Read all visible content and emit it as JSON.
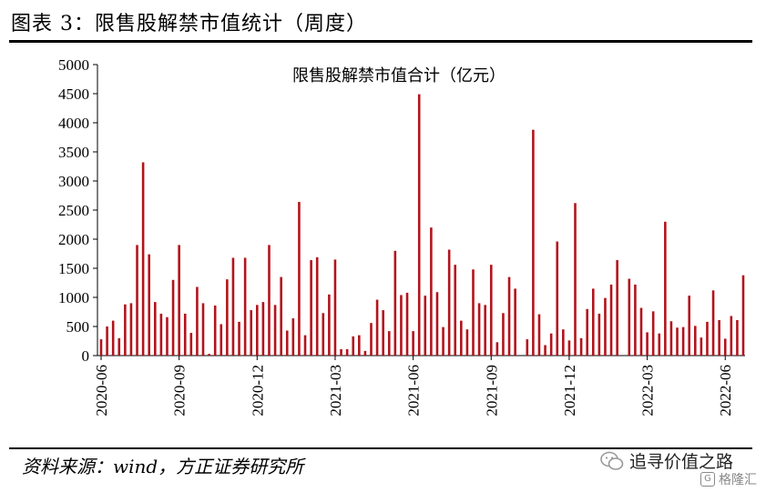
{
  "figure": {
    "title": "图表 3：限售股解禁市值统计（周度）",
    "source": "资料来源：wind，方正证券研究所",
    "watermark_line1": "追寻价值之路",
    "watermark_line2": "格隆汇",
    "watermark_badge": "G"
  },
  "chart_data": {
    "type": "bar",
    "title": "限售股解禁市值合计（亿元）",
    "ylim": [
      0,
      5000
    ],
    "yticks": [
      0,
      500,
      1000,
      1500,
      2000,
      2500,
      3000,
      3500,
      4000,
      4500,
      5000
    ],
    "xtick_labels": [
      "2020-06",
      "2020-09",
      "2020-12",
      "2021-03",
      "2021-06",
      "2021-09",
      "2021-12",
      "2022-03",
      "2022-06"
    ],
    "xtick_index": [
      0,
      13,
      26,
      39,
      52,
      65,
      78,
      91,
      104
    ],
    "grid": false,
    "legend": "none",
    "bar_color": "#b2141c",
    "values": [
      280,
      500,
      600,
      300,
      880,
      900,
      1900,
      3320,
      1740,
      920,
      720,
      660,
      1300,
      1900,
      720,
      390,
      1180,
      900,
      30,
      860,
      540,
      1310,
      1680,
      580,
      1680,
      780,
      870,
      920,
      1900,
      870,
      1350,
      430,
      640,
      2640,
      350,
      1640,
      1690,
      730,
      1050,
      1650,
      110,
      110,
      330,
      350,
      80,
      560,
      960,
      780,
      420,
      1800,
      1040,
      1080,
      420,
      4490,
      1030,
      2200,
      1090,
      490,
      1820,
      1560,
      600,
      450,
      1480,
      900,
      870,
      1560,
      230,
      730,
      1350,
      1150,
      0,
      280,
      3880,
      710,
      180,
      380,
      1960,
      450,
      260,
      2620,
      300,
      800,
      1150,
      720,
      990,
      1220,
      1640,
      0,
      1320,
      1220,
      820,
      400,
      760,
      380,
      2300,
      590,
      480,
      490,
      1030,
      510,
      310,
      580,
      1120,
      610,
      290,
      680,
      610,
      1380
    ]
  }
}
